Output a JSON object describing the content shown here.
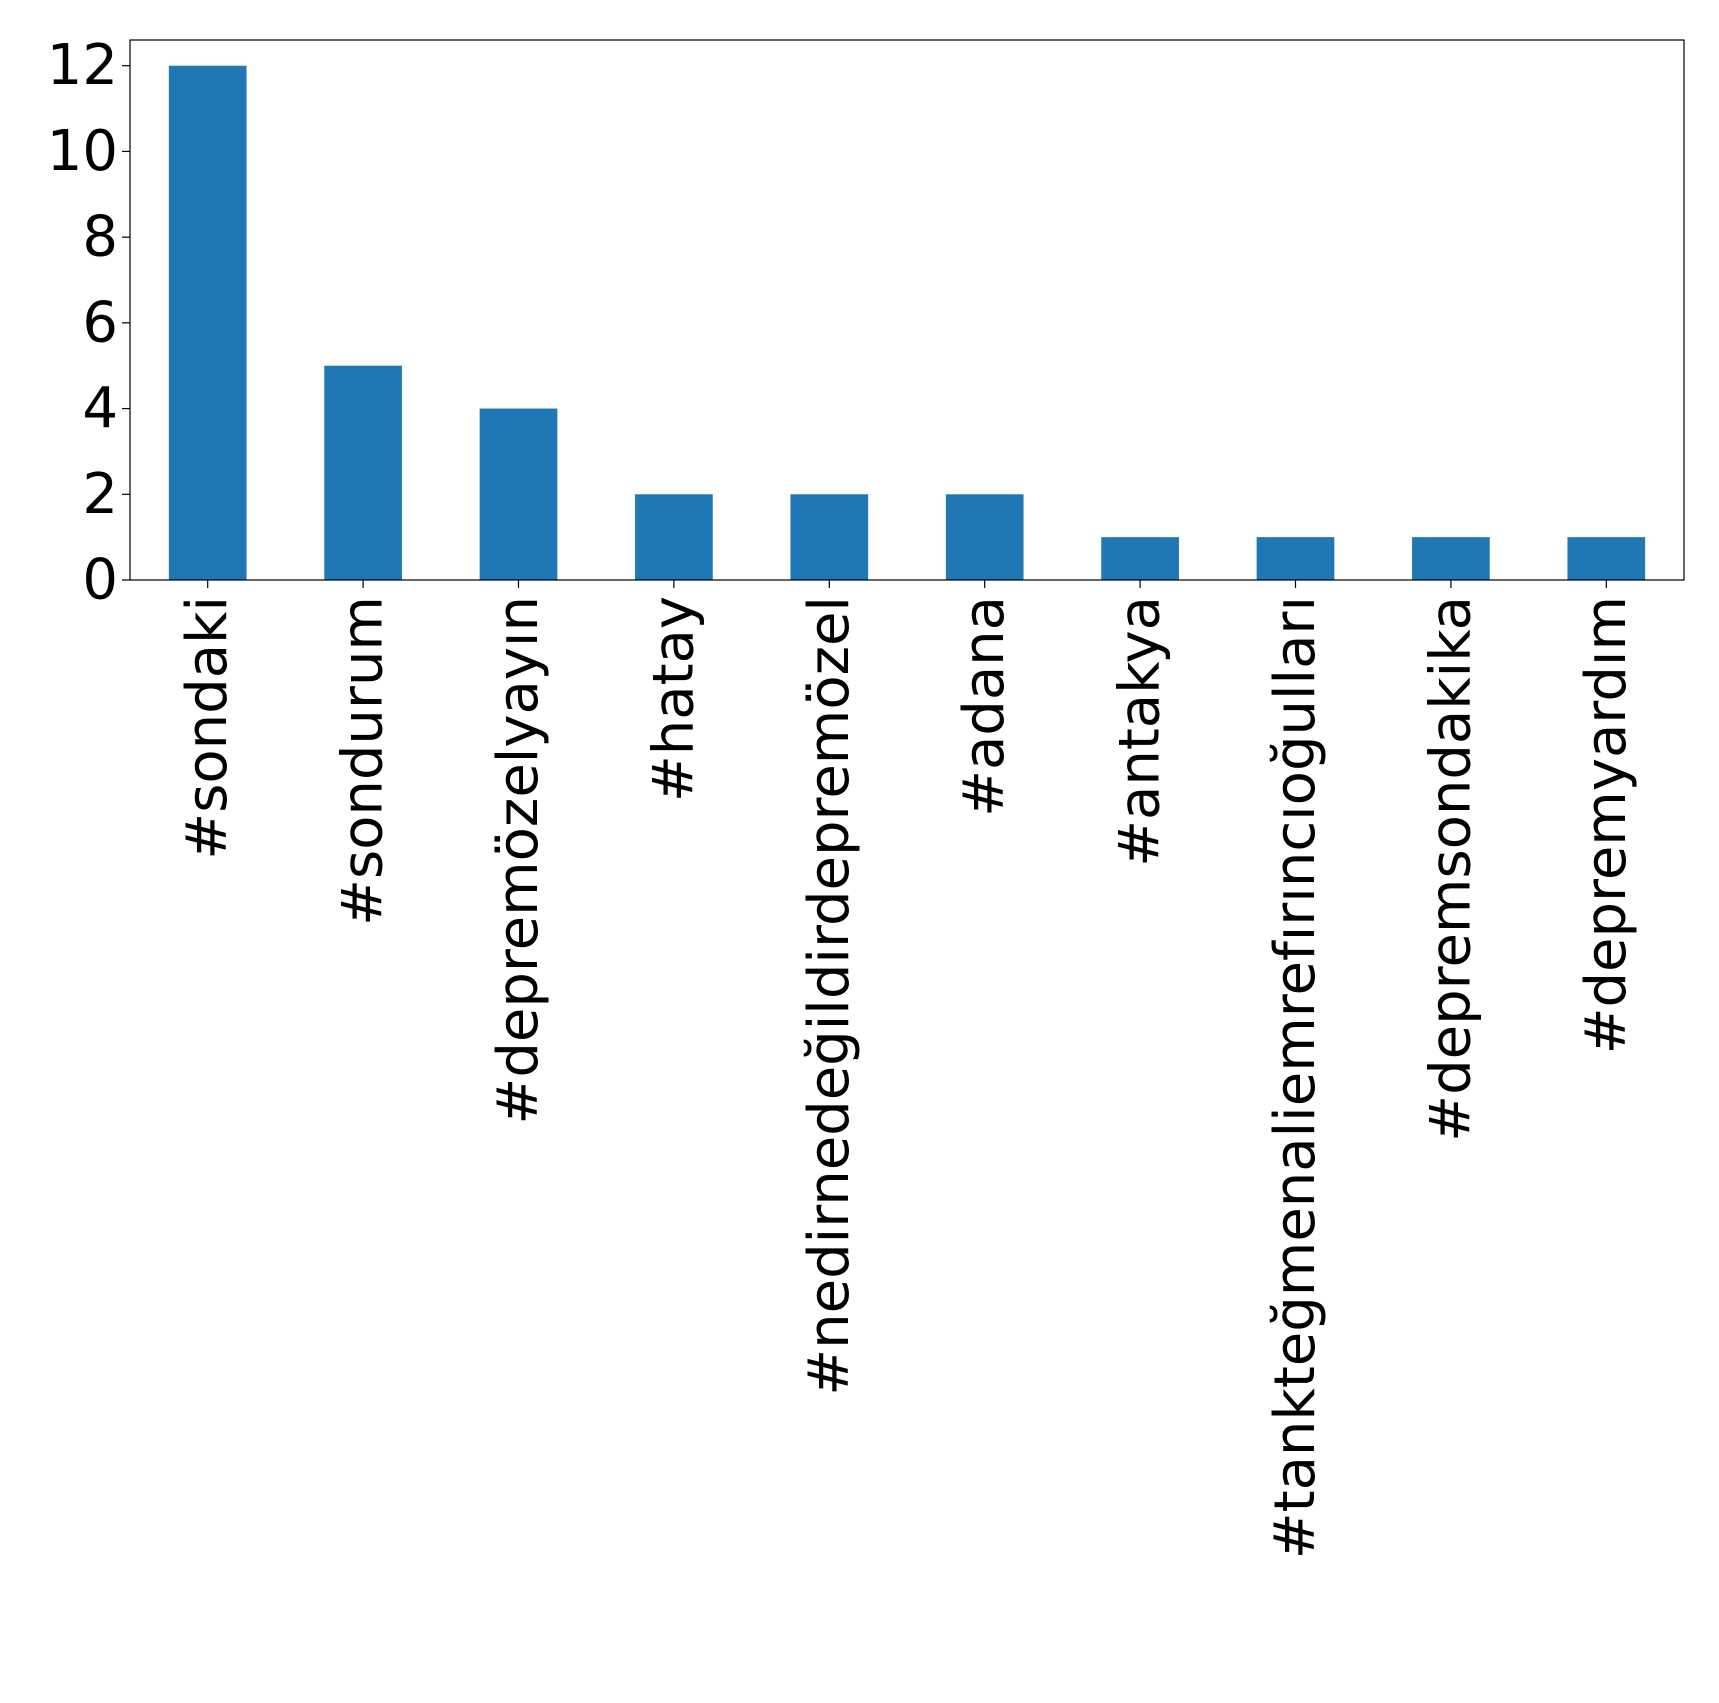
{
  "chart_data": {
    "type": "bar",
    "title": "",
    "xlabel": "",
    "ylabel": "",
    "categories": [
      "#sondaki",
      "#sondurum",
      "#depremözelyayın",
      "#hatay",
      "#nedirnedeğildirdepremözel",
      "#adana",
      "#antakya",
      "#tankteğmenaliemrefırıncıoğulları",
      "#depremsondakika",
      "#depremyardım"
    ],
    "values": [
      12,
      5,
      4,
      2,
      2,
      2,
      1,
      1,
      1,
      1
    ],
    "ylim": [
      0,
      12.6
    ],
    "yticks": [
      0,
      2,
      4,
      6,
      8,
      10,
      12
    ],
    "grid": false,
    "legend": "none",
    "bar_color": "#1f77b4"
  }
}
